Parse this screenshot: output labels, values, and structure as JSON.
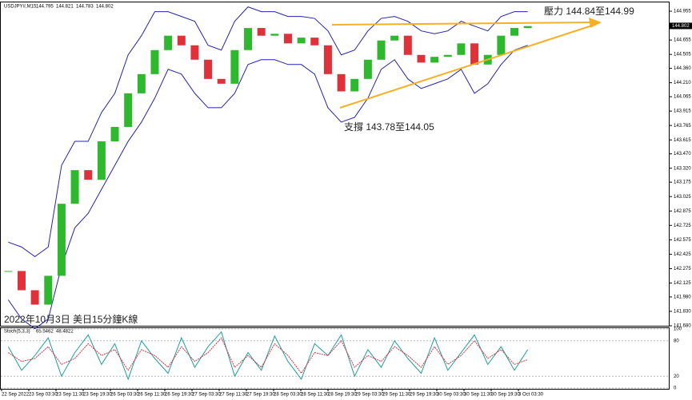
{
  "chart_data": {
    "type": "candlestick",
    "symbol_info": "USDJPY#,M15",
    "ohlc": [
      144.795,
      144.821,
      144.783,
      144.802
    ],
    "annotations": [
      "壓力 144.84至144.99",
      "支撐 143.78至144.05",
      "2022年10月3日  美日15分鐘K線"
    ],
    "close": [
      142.25,
      142.05,
      141.9,
      142.2,
      142.95,
      143.3,
      143.2,
      143.6,
      143.75,
      144.1,
      144.3,
      144.55,
      144.7,
      144.6,
      144.45,
      144.25,
      144.2,
      144.55,
      144.78,
      144.7,
      144.72,
      144.62,
      144.68,
      144.6,
      144.3,
      144.12,
      144.25,
      144.45,
      144.65,
      144.7,
      144.5,
      144.42,
      144.48,
      144.5,
      144.62,
      144.4,
      144.5,
      144.7,
      144.78,
      144.8
    ],
    "upper": [
      142.55,
      142.5,
      142.4,
      142.5,
      143.35,
      143.6,
      143.6,
      143.9,
      144.1,
      144.5,
      144.7,
      144.95,
      144.95,
      144.9,
      144.85,
      144.6,
      144.55,
      144.85,
      145.0,
      144.95,
      144.95,
      144.9,
      144.9,
      144.88,
      144.75,
      144.5,
      144.55,
      144.75,
      144.88,
      144.9,
      144.85,
      144.75,
      144.72,
      144.75,
      144.85,
      144.8,
      144.75,
      144.9,
      144.95,
      144.95
    ],
    "lower": [
      141.95,
      141.75,
      141.65,
      141.75,
      142.3,
      142.7,
      142.85,
      143.1,
      143.35,
      143.6,
      143.8,
      144.05,
      144.35,
      144.3,
      144.1,
      143.95,
      143.95,
      144.1,
      144.4,
      144.45,
      144.45,
      144.4,
      144.4,
      144.3,
      143.95,
      143.8,
      143.85,
      144.05,
      144.35,
      144.45,
      144.25,
      144.15,
      144.2,
      144.25,
      144.35,
      144.1,
      144.2,
      144.4,
      144.55,
      144.6
    ],
    "up_color": "#2eb82e",
    "down_color": "#e0303a",
    "band_color": "#2323b0",
    "ylim": [
      141.68,
      145.055
    ],
    "yticks": [
      144.955,
      144.655,
      144.505,
      {
        "value": 144.36,
        "label": "144.360"
      },
      {
        "value": 144.21,
        "label": "144.210"
      },
      144.065,
      143.915,
      143.765,
      143.615,
      {
        "value": 143.47,
        "label": "143.470"
      },
      {
        "value": 143.32,
        "label": "143.320"
      },
      143.175,
      143.025,
      142.875,
      142.725,
      142.575,
      142.425,
      142.275,
      142.125,
      {
        "value": 141.98,
        "label": "141.980"
      },
      {
        "value": 141.83,
        "label": "141.830"
      },
      {
        "value": 141.68,
        "label": "141.680"
      }
    ],
    "categories": [
      "22 Sep 2022",
      "23 Sep 03:30",
      "23 Sep 11:30",
      "23 Sep 19:30",
      "26 Sep 03:30",
      "26 Sep 11:30",
      "26 Sep 19:30",
      "27 Sep 03:30",
      "27 Sep 11:30",
      "27 Sep 19:30",
      "28 Sep 03:30",
      "28 Sep 11:30",
      "28 Sep 19:30",
      "29 Sep 03:30",
      "29 Sep 11:30",
      "29 Sep 19:30",
      "30 Sep 03:30",
      "30 Sep 11:30",
      "30 Sep 19:30",
      "3 Oct 03:30"
    ],
    "stoch_name": "Stoch(5,3,3)",
    "stoch_last": [
      65.5462,
      48.4822
    ],
    "stoch_main": [
      70,
      30,
      55,
      85,
      20,
      60,
      90,
      40,
      75,
      15,
      80,
      50,
      25,
      85,
      35,
      70,
      95,
      20,
      60,
      30,
      88,
      45,
      15,
      75,
      55,
      90,
      20,
      65,
      35,
      80,
      50,
      25,
      85,
      30,
      60,
      90,
      40,
      70,
      30,
      65
    ],
    "stoch_signal": [
      60,
      45,
      50,
      70,
      40,
      50,
      75,
      55,
      65,
      30,
      65,
      55,
      35,
      70,
      45,
      60,
      85,
      35,
      55,
      35,
      75,
      55,
      25,
      60,
      55,
      80,
      35,
      55,
      45,
      70,
      55,
      35,
      70,
      40,
      55,
      80,
      50,
      65,
      40,
      48
    ],
    "stoch_colors": [
      "#1e9e9e",
      "#e0303a"
    ],
    "stoch_ylim": [
      0,
      100
    ],
    "stoch_yticks": [
      100,
      80,
      20,
      0
    ]
  }
}
